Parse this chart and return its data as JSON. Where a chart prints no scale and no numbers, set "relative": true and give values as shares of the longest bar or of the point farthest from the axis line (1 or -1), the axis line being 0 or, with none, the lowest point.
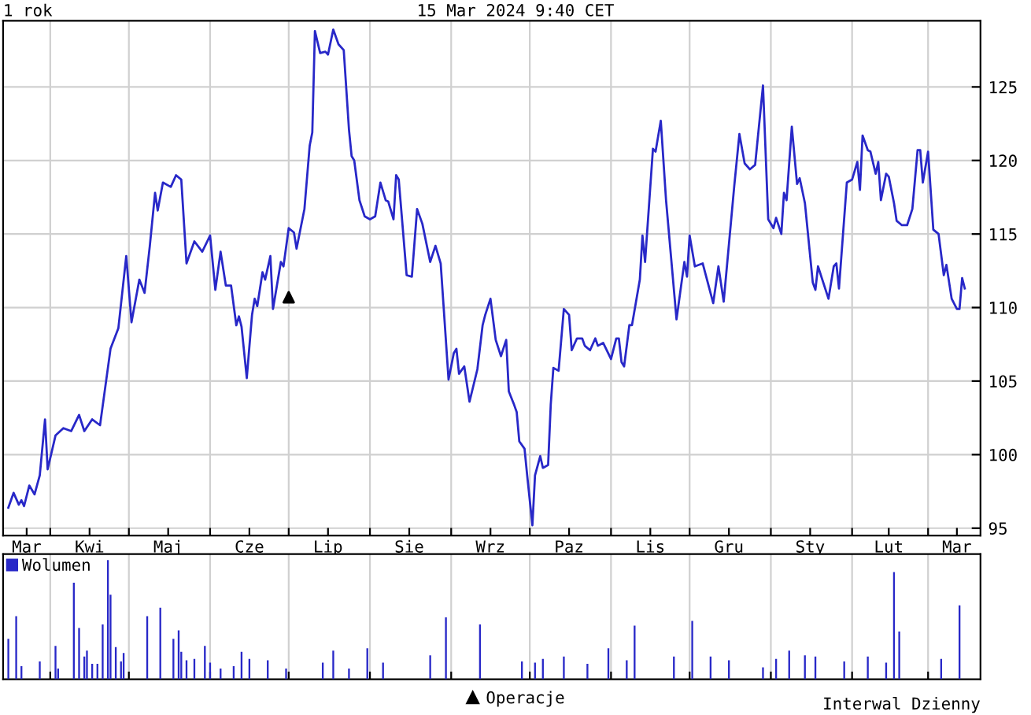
{
  "chart_data": [
    {
      "type": "line",
      "title": "1 rok",
      "subtitle": "15 Mar 2024 9:40 CET",
      "annotations": [
        "Interwal Dzienny"
      ],
      "xlim": [
        "2023-03-14",
        "2024-03-21"
      ],
      "ylim": [
        94.5,
        129.5
      ],
      "yticks": [
        95,
        100,
        105,
        110,
        115,
        120,
        125
      ],
      "xticks": [
        {
          "value": "2023-03-23",
          "label": "Mar"
        },
        {
          "value": "2023-04-01",
          "label": null
        },
        {
          "value": "2023-04-16",
          "label": "Kwi"
        },
        {
          "value": "2023-05-01",
          "label": null
        },
        {
          "value": "2023-05-16",
          "label": "Maj"
        },
        {
          "value": "2023-06-01",
          "label": null
        },
        {
          "value": "2023-06-16",
          "label": "Cze"
        },
        {
          "value": "2023-07-01",
          "label": null
        },
        {
          "value": "2023-07-16",
          "label": "Lip"
        },
        {
          "value": "2023-08-01",
          "label": null
        },
        {
          "value": "2023-08-16",
          "label": "Sie"
        },
        {
          "value": "2023-09-01",
          "label": null
        },
        {
          "value": "2023-09-16",
          "label": "Wrz"
        },
        {
          "value": "2023-10-01",
          "label": null
        },
        {
          "value": "2023-10-16",
          "label": "Paz"
        },
        {
          "value": "2023-11-01",
          "label": null
        },
        {
          "value": "2023-11-16",
          "label": "Lis"
        },
        {
          "value": "2023-12-01",
          "label": null
        },
        {
          "value": "2023-12-16",
          "label": "Gru"
        },
        {
          "value": "2024-01-01",
          "label": null
        },
        {
          "value": "2024-01-16",
          "label": "Sty"
        },
        {
          "value": "2024-02-01",
          "label": null
        },
        {
          "value": "2024-02-15",
          "label": "Lut"
        },
        {
          "value": "2024-03-01",
          "label": null
        },
        {
          "value": "2024-03-12",
          "label": "Mar"
        }
      ],
      "grid": true,
      "legend": "bottom",
      "series": [
        {
          "type": "line",
          "color": "#2828c8",
          "x": [
            "2023-03-16",
            "2023-03-18",
            "2023-03-20",
            "2023-03-21",
            "2023-03-22",
            "2023-03-24",
            "2023-03-26",
            "2023-03-28",
            "2023-03-30",
            "2023-03-31",
            "2023-04-03",
            "2023-04-06",
            "2023-04-09",
            "2023-04-12",
            "2023-04-14",
            "2023-04-17",
            "2023-04-20",
            "2023-04-24",
            "2023-04-27",
            "2023-04-30",
            "2023-05-02",
            "2023-05-05",
            "2023-05-07",
            "2023-05-09",
            "2023-05-11",
            "2023-05-12",
            "2023-05-14",
            "2023-05-17",
            "2023-05-19",
            "2023-05-21",
            "2023-05-23",
            "2023-05-26",
            "2023-05-29",
            "2023-06-01",
            "2023-06-03",
            "2023-06-05",
            "2023-06-07",
            "2023-06-09",
            "2023-06-11",
            "2023-06-12",
            "2023-06-13",
            "2023-06-15",
            "2023-06-17",
            "2023-06-18",
            "2023-06-19",
            "2023-06-21",
            "2023-06-22",
            "2023-06-24",
            "2023-06-25",
            "2023-06-28",
            "2023-06-29",
            "2023-07-01",
            "2023-07-03",
            "2023-07-04",
            "2023-07-07",
            "2023-07-09",
            "2023-07-10",
            "2023-07-11",
            "2023-07-13",
            "2023-07-15",
            "2023-07-16",
            "2023-07-18",
            "2023-07-20",
            "2023-07-22",
            "2023-07-24",
            "2023-07-25",
            "2023-07-26",
            "2023-07-28",
            "2023-07-30",
            "2023-08-01",
            "2023-08-03",
            "2023-08-05",
            "2023-08-07",
            "2023-08-08",
            "2023-08-10",
            "2023-08-11",
            "2023-08-12",
            "2023-08-15",
            "2023-08-17",
            "2023-08-19",
            "2023-08-21",
            "2023-08-24",
            "2023-08-26",
            "2023-08-28",
            "2023-08-31",
            "2023-09-02",
            "2023-09-03",
            "2023-09-04",
            "2023-09-06",
            "2023-09-08",
            "2023-09-11",
            "2023-09-13",
            "2023-09-14",
            "2023-09-16",
            "2023-09-18",
            "2023-09-20",
            "2023-09-22",
            "2023-09-23",
            "2023-09-25",
            "2023-09-26",
            "2023-09-27",
            "2023-09-29",
            "2023-09-30",
            "2023-10-02",
            "2023-10-03",
            "2023-10-05",
            "2023-10-06",
            "2023-10-08",
            "2023-10-09",
            "2023-10-10",
            "2023-10-12",
            "2023-10-14",
            "2023-10-16",
            "2023-10-17",
            "2023-10-19",
            "2023-10-21",
            "2023-10-22",
            "2023-10-24",
            "2023-10-26",
            "2023-10-27",
            "2023-10-29",
            "2023-11-01",
            "2023-11-03",
            "2023-11-04",
            "2023-11-05",
            "2023-11-06",
            "2023-11-08",
            "2023-11-09",
            "2023-11-12",
            "2023-11-13",
            "2023-11-14",
            "2023-11-17",
            "2023-11-18",
            "2023-11-20",
            "2023-11-22",
            "2023-11-26",
            "2023-11-29",
            "2023-11-30",
            "2023-12-01",
            "2023-12-03",
            "2023-12-06",
            "2023-12-10",
            "2023-12-12",
            "2023-12-14",
            "2023-12-18",
            "2023-12-20",
            "2023-12-22",
            "2023-12-24",
            "2023-12-26",
            "2023-12-29",
            "2023-12-31",
            "2024-01-02",
            "2024-01-03",
            "2024-01-05",
            "2024-01-06",
            "2024-01-07",
            "2024-01-09",
            "2024-01-11",
            "2024-01-12",
            "2024-01-14",
            "2024-01-17",
            "2024-01-18",
            "2024-01-19",
            "2024-01-23",
            "2024-01-25",
            "2024-01-26",
            "2024-01-27",
            "2024-01-30",
            "2024-02-01",
            "2024-02-03",
            "2024-02-04",
            "2024-02-05",
            "2024-02-07",
            "2024-02-08",
            "2024-02-10",
            "2024-02-11",
            "2024-02-12",
            "2024-02-14",
            "2024-02-15",
            "2024-02-17",
            "2024-02-18",
            "2024-02-20",
            "2024-02-22",
            "2024-02-24",
            "2024-02-26",
            "2024-02-27",
            "2024-02-28",
            "2024-03-01",
            "2024-03-03",
            "2024-03-05",
            "2024-03-07",
            "2024-03-08",
            "2024-03-10",
            "2024-03-12",
            "2024-03-13",
            "2024-03-14",
            "2024-03-15"
          ],
          "values": [
            96.4,
            97.4,
            96.6,
            96.9,
            96.5,
            97.9,
            97.3,
            98.6,
            102.4,
            99.0,
            101.3,
            101.8,
            101.6,
            102.7,
            101.6,
            102.4,
            102.0,
            107.2,
            108.6,
            113.5,
            109.0,
            111.9,
            111.0,
            114.2,
            117.8,
            116.6,
            118.5,
            118.2,
            119.0,
            118.7,
            113.0,
            114.5,
            113.8,
            114.9,
            111.2,
            113.8,
            111.5,
            111.5,
            108.8,
            109.4,
            108.7,
            105.2,
            109.5,
            110.6,
            110.1,
            112.4,
            111.9,
            113.5,
            109.9,
            113.1,
            112.8,
            115.4,
            115.1,
            114.0,
            116.7,
            121.0,
            121.9,
            128.8,
            127.3,
            127.4,
            127.2,
            128.9,
            127.9,
            127.5,
            122.1,
            120.3,
            120.0,
            117.3,
            116.2,
            116.0,
            116.2,
            118.5,
            117.3,
            117.2,
            116.0,
            119.0,
            118.7,
            112.2,
            112.1,
            116.7,
            115.7,
            113.1,
            114.2,
            113.0,
            105.1,
            106.9,
            107.2,
            105.5,
            106.0,
            103.6,
            105.8,
            108.8,
            109.5,
            110.6,
            107.8,
            106.7,
            107.8,
            104.3,
            103.4,
            102.9,
            100.9,
            100.4,
            98.6,
            95.2,
            98.6,
            99.9,
            99.1,
            99.3,
            103.4,
            105.9,
            105.7,
            109.9,
            109.5,
            107.1,
            107.9,
            107.9,
            107.4,
            107.1,
            107.9,
            107.4,
            107.6,
            106.5,
            107.9,
            107.9,
            106.3,
            106.0,
            108.8,
            108.8,
            111.9,
            114.9,
            113.1,
            120.8,
            120.6,
            122.7,
            117.3,
            109.2,
            113.1,
            112.1,
            114.9,
            112.8,
            113.0,
            110.3,
            112.8,
            110.4,
            118.2,
            121.8,
            119.8,
            119.4,
            119.7,
            125.1,
            116.0,
            115.4,
            116.1,
            115.0,
            117.8,
            117.3,
            122.3,
            118.4,
            118.8,
            117.1,
            111.7,
            111.2,
            112.8,
            110.6,
            112.8,
            113.0,
            111.3,
            118.5,
            118.7,
            119.9,
            118.0,
            121.7,
            120.7,
            120.6,
            119.1,
            119.9,
            117.3,
            119.1,
            118.9,
            117.1,
            115.9,
            115.6,
            115.6,
            116.7,
            120.7,
            120.7,
            118.5,
            120.6,
            115.3,
            115.0,
            112.2,
            112.9,
            110.6,
            109.9,
            109.9,
            112.0,
            111.3
          ]
        },
        {
          "type": "scatter",
          "name": "Operacje",
          "color": "#000000",
          "marker": "triangle",
          "x": [
            "2023-07-01"
          ],
          "values": [
            110.7
          ]
        }
      ]
    },
    {
      "type": "bar",
      "relative": true,
      "tick_labels": false,
      "grid": "x",
      "legend": "top left",
      "xlim": [
        "2023-03-14",
        "2024-03-21"
      ],
      "xticks": [
        {
          "value": "2023-04-01",
          "label": null
        },
        {
          "value": "2023-05-01",
          "label": null
        },
        {
          "value": "2023-06-01",
          "label": null
        },
        {
          "value": "2023-07-01",
          "label": null
        },
        {
          "value": "2023-08-01",
          "label": null
        },
        {
          "value": "2023-09-01",
          "label": null
        },
        {
          "value": "2023-10-01",
          "label": null
        },
        {
          "value": "2023-11-01",
          "label": null
        },
        {
          "value": "2023-12-01",
          "label": null
        },
        {
          "value": "2024-01-01",
          "label": null
        },
        {
          "value": "2024-02-01",
          "label": null
        },
        {
          "value": "2024-03-01",
          "label": null
        }
      ],
      "series": [
        {
          "name": "Wolumen",
          "color": "#2828c8",
          "x": [
            "2023-03-16",
            "2023-03-19",
            "2023-03-21",
            "2023-03-28",
            "2023-04-03",
            "2023-04-04",
            "2023-04-10",
            "2023-04-12",
            "2023-04-14",
            "2023-04-15",
            "2023-04-17",
            "2023-04-19",
            "2023-04-21",
            "2023-04-23",
            "2023-04-24",
            "2023-04-26",
            "2023-04-28",
            "2023-04-29",
            "2023-05-08",
            "2023-05-13",
            "2023-05-18",
            "2023-05-20",
            "2023-05-21",
            "2023-05-23",
            "2023-05-26",
            "2023-05-30",
            "2023-06-01",
            "2023-06-05",
            "2023-06-10",
            "2023-06-13",
            "2023-06-16",
            "2023-06-23",
            "2023-06-30",
            "2023-07-14",
            "2023-07-18",
            "2023-07-24",
            "2023-07-31",
            "2023-08-06",
            "2023-08-24",
            "2023-08-30",
            "2023-09-12",
            "2023-09-28",
            "2023-10-03",
            "2023-10-06",
            "2023-10-14",
            "2023-10-23",
            "2023-10-31",
            "2023-11-07",
            "2023-11-10",
            "2023-11-25",
            "2023-12-02",
            "2023-12-09",
            "2023-12-16",
            "2023-12-29",
            "2024-01-03",
            "2024-01-08",
            "2024-01-14",
            "2024-01-18",
            "2024-01-29",
            "2024-02-07",
            "2024-02-14",
            "2024-02-17",
            "2024-02-19",
            "2024-03-06",
            "2024-03-13"
          ],
          "values": [
            0.34,
            0.53,
            0.11,
            0.15,
            0.28,
            0.09,
            0.81,
            0.43,
            0.19,
            0.24,
            0.13,
            0.13,
            0.46,
            1.0,
            0.71,
            0.27,
            0.15,
            0.22,
            0.53,
            0.6,
            0.34,
            0.41,
            0.23,
            0.16,
            0.17,
            0.28,
            0.14,
            0.09,
            0.11,
            0.23,
            0.17,
            0.16,
            0.09,
            0.14,
            0.24,
            0.09,
            0.26,
            0.14,
            0.2,
            0.52,
            0.46,
            0.15,
            0.14,
            0.17,
            0.19,
            0.13,
            0.26,
            0.16,
            0.45,
            0.19,
            0.49,
            0.19,
            0.16,
            0.1,
            0.17,
            0.24,
            0.2,
            0.19,
            0.15,
            0.19,
            0.14,
            0.9,
            0.4,
            0.17,
            0.62
          ]
        }
      ]
    }
  ]
}
